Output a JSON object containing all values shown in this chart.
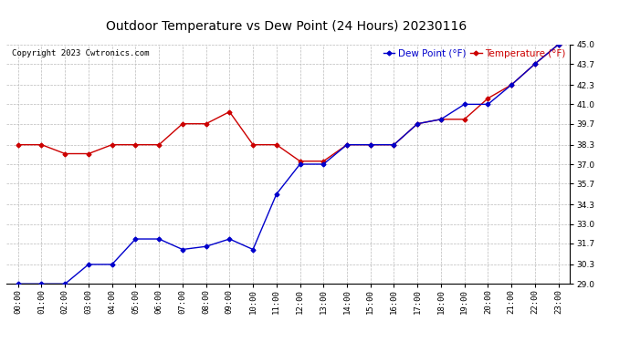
{
  "title": "Outdoor Temperature vs Dew Point (24 Hours) 20230116",
  "copyright_text": "Copyright 2023 Cwtronics.com",
  "legend_dew": "Dew Point (°F)",
  "legend_temp": "Temperature (°F)",
  "background_color": "#ffffff",
  "grid_color": "#bbbbbb",
  "plot_bg": "#ffffff",
  "hours": [
    "00:00",
    "01:00",
    "02:00",
    "03:00",
    "04:00",
    "05:00",
    "06:00",
    "07:00",
    "08:00",
    "09:00",
    "10:00",
    "11:00",
    "12:00",
    "13:00",
    "14:00",
    "15:00",
    "16:00",
    "17:00",
    "18:00",
    "19:00",
    "20:00",
    "21:00",
    "22:00",
    "23:00"
  ],
  "temperature": [
    38.3,
    38.3,
    37.7,
    37.7,
    38.3,
    38.3,
    38.3,
    39.7,
    39.7,
    40.5,
    38.3,
    38.3,
    37.2,
    37.2,
    38.3,
    38.3,
    38.3,
    39.7,
    40.0,
    40.0,
    41.4,
    42.3,
    43.7,
    45.0
  ],
  "dew_point": [
    29.0,
    29.0,
    29.0,
    30.3,
    30.3,
    32.0,
    32.0,
    31.3,
    31.5,
    32.0,
    31.3,
    35.0,
    37.0,
    37.0,
    38.3,
    38.3,
    38.3,
    39.7,
    40.0,
    41.0,
    41.0,
    42.3,
    43.7,
    45.0
  ],
  "ylim": [
    29.0,
    45.0
  ],
  "yticks": [
    29.0,
    30.3,
    31.7,
    33.0,
    34.3,
    35.7,
    37.0,
    38.3,
    39.7,
    41.0,
    42.3,
    43.7,
    45.0
  ],
  "temp_color": "#cc0000",
  "dew_color": "#0000cc",
  "marker": "D",
  "marker_size": 2.5,
  "line_width": 1.0,
  "title_fontsize": 10,
  "tick_fontsize": 6.5,
  "copyright_fontsize": 6.5,
  "legend_fontsize": 7.5
}
